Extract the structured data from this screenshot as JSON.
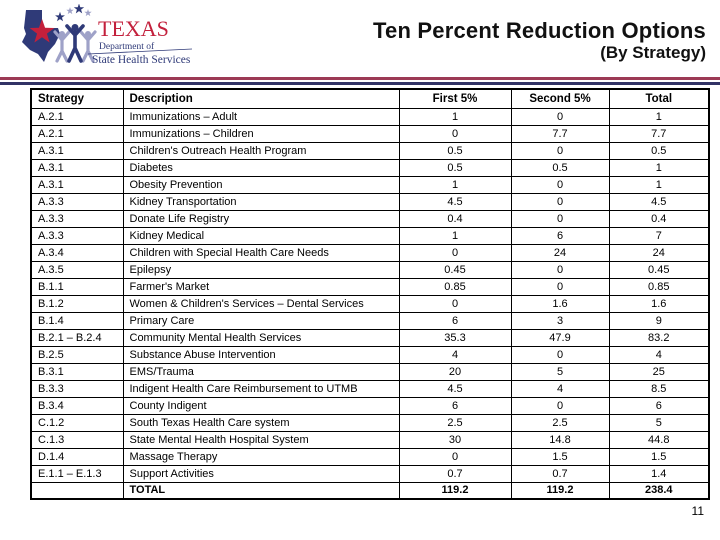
{
  "page": {
    "slide_number": "11"
  },
  "logo": {
    "org": "TEXAS",
    "dept_line1": "Department of",
    "dept_line2": "State Health Services",
    "colors": {
      "red": "#C3203C",
      "navy": "#2F3A78",
      "lavender": "#9FA2C8"
    }
  },
  "header": {
    "title": "Ten Percent Reduction Options",
    "subtitle": "(By Strategy)"
  },
  "separator": {
    "top_color": "#9C3A55",
    "bottom_color": "#323366"
  },
  "table": {
    "columns": [
      "Strategy",
      "Description",
      "First 5%",
      "Second 5%",
      "Total"
    ],
    "rows": [
      [
        "A.2.1",
        "Immunizations – Adult",
        "1",
        "0",
        "1"
      ],
      [
        "A.2.1",
        "Immunizations – Children",
        "0",
        "7.7",
        "7.7"
      ],
      [
        "A.3.1",
        "Children's Outreach Health Program",
        "0.5",
        "0",
        "0.5"
      ],
      [
        "A.3.1",
        "Diabetes",
        "0.5",
        "0.5",
        "1"
      ],
      [
        "A.3.1",
        "Obesity Prevention",
        "1",
        "0",
        "1"
      ],
      [
        "A.3.3",
        "Kidney Transportation",
        "4.5",
        "0",
        "4.5"
      ],
      [
        "A.3.3",
        "Donate Life Registry",
        "0.4",
        "0",
        "0.4"
      ],
      [
        "A.3.3",
        "Kidney Medical",
        "1",
        "6",
        "7"
      ],
      [
        "A.3.4",
        "Children with Special Health Care Needs",
        "0",
        "24",
        "24"
      ],
      [
        "A.3.5",
        "Epilepsy",
        "0.45",
        "0",
        "0.45"
      ],
      [
        "B.1.1",
        "Farmer's Market",
        "0.85",
        "0",
        "0.85"
      ],
      [
        "B.1.2",
        "Women & Children's Services – Dental Services",
        "0",
        "1.6",
        "1.6"
      ],
      [
        "B.1.4",
        "Primary Care",
        "6",
        "3",
        "9"
      ],
      [
        "B.2.1 – B.2.4",
        "Community Mental Health Services",
        "35.3",
        "47.9",
        "83.2"
      ],
      [
        "B.2.5",
        "Substance Abuse Intervention",
        "4",
        "0",
        "4"
      ],
      [
        "B.3.1",
        "EMS/Trauma",
        "20",
        "5",
        "25"
      ],
      [
        "B.3.3",
        "Indigent Health Care Reimbursement to UTMB",
        "4.5",
        "4",
        "8.5"
      ],
      [
        "B.3.4",
        "County Indigent",
        "6",
        "0",
        "6"
      ],
      [
        "C.1.2",
        "South Texas Health Care system",
        "2.5",
        "2.5",
        "5"
      ],
      [
        "C.1.3",
        "State Mental Health Hospital System",
        "30",
        "14.8",
        "44.8"
      ],
      [
        "D.1.4",
        "Massage Therapy",
        "0",
        "1.5",
        "1.5"
      ],
      [
        "E.1.1 – E.1.3",
        "Support Activities",
        "0.7",
        "0.7",
        "1.4"
      ]
    ],
    "total_row": [
      "",
      "TOTAL",
      "119.2",
      "119.2",
      "238.4"
    ]
  }
}
